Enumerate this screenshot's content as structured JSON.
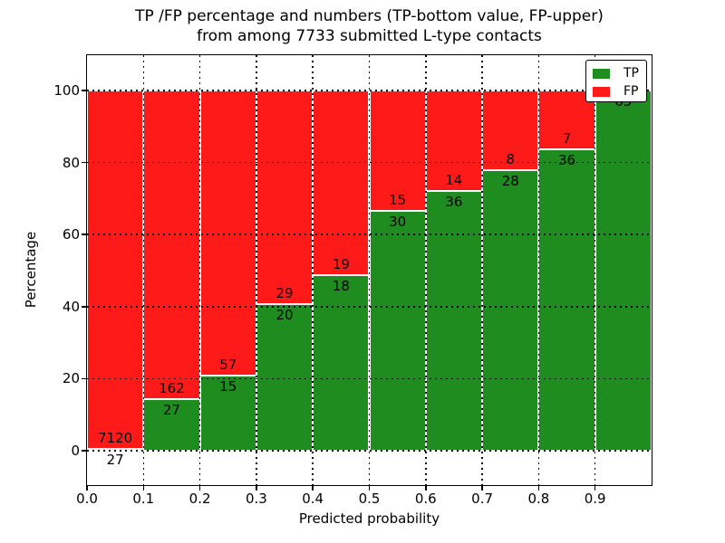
{
  "chart_data": {
    "type": "bar",
    "subtype": "stacked-100-percent",
    "title_line1": "TP /FP percentage and numbers (TP-bottom value, FP-upper)",
    "title_line2": "from among 7733 submitted L-type contacts",
    "xlabel": "Predicted probability",
    "ylabel": "Percentage",
    "x_tick_labels": [
      "0.0",
      "0.1",
      "0.2",
      "0.3",
      "0.4",
      "0.5",
      "0.6",
      "0.7",
      "0.8",
      "0.9"
    ],
    "y_ticks": [
      0,
      20,
      40,
      60,
      80,
      100
    ],
    "xlim": [
      0.0,
      1.0
    ],
    "ylim": [
      -10,
      110
    ],
    "grid": {
      "style": "dotted",
      "color": "#000000"
    },
    "total_contacts": 7733,
    "legend": {
      "position": "upper-right",
      "entries": [
        {
          "label": "TP",
          "color": "#1e8c1e"
        },
        {
          "label": "FP",
          "color": "#ff1a1a"
        }
      ]
    },
    "bins": [
      {
        "range": "0.0-0.1",
        "tp": 27,
        "fp": 7120
      },
      {
        "range": "0.1-0.2",
        "tp": 27,
        "fp": 162
      },
      {
        "range": "0.2-0.3",
        "tp": 15,
        "fp": 57
      },
      {
        "range": "0.3-0.4",
        "tp": 20,
        "fp": 29
      },
      {
        "range": "0.4-0.5",
        "tp": 18,
        "fp": 19
      },
      {
        "range": "0.5-0.6",
        "tp": 30,
        "fp": 15
      },
      {
        "range": "0.6-0.7",
        "tp": 36,
        "fp": 14
      },
      {
        "range": "0.7-0.8",
        "tp": 28,
        "fp": 8
      },
      {
        "range": "0.8-0.9",
        "tp": 36,
        "fp": 7
      },
      {
        "range": "0.9-1.0",
        "tp": 65,
        "fp": 0
      }
    ],
    "colors": {
      "tp": "#1e8c1e",
      "fp": "#ff1a1a",
      "background": "#ffffff",
      "text": "#000000"
    }
  }
}
